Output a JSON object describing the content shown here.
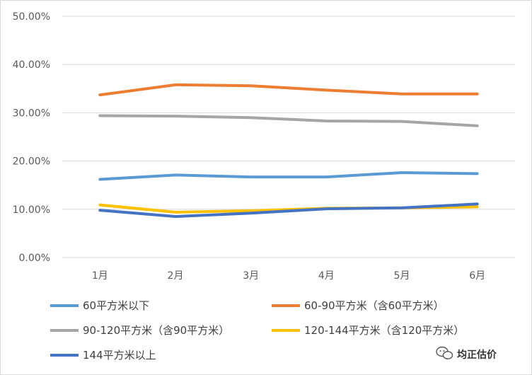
{
  "chart_data": {
    "type": "line",
    "title": "",
    "xlabel": "",
    "ylabel": "",
    "categories": [
      "1月",
      "2月",
      "3月",
      "4月",
      "5月",
      "6月"
    ],
    "ylim": [
      0,
      50
    ],
    "yticks": [
      "0.00%",
      "10.00%",
      "20.00%",
      "30.00%",
      "40.00%",
      "50.00%"
    ],
    "grid": true,
    "legend_position": "bottom",
    "series": [
      {
        "name": "60平方米以下",
        "color": "#5b9bd5",
        "values": [
          16.2,
          17.1,
          16.7,
          16.7,
          17.6,
          17.4
        ]
      },
      {
        "name": "60-90平方米（含60平方米）",
        "color": "#ed7d31",
        "values": [
          33.7,
          35.8,
          35.6,
          34.7,
          33.9,
          33.9
        ]
      },
      {
        "name": "90-120平方米（含90平方米）",
        "color": "#a5a5a5",
        "values": [
          29.4,
          29.3,
          29.0,
          28.3,
          28.2,
          27.3
        ]
      },
      {
        "name": "120-144平方米（含120平方米）",
        "color": "#ffc000",
        "values": [
          10.9,
          9.4,
          9.7,
          10.2,
          10.3,
          10.5
        ]
      },
      {
        "name": "144平方米以上",
        "color": "#4472c4",
        "values": [
          9.8,
          8.5,
          9.2,
          10.1,
          10.3,
          11.1
        ]
      }
    ]
  },
  "watermark": {
    "text": "均正估价",
    "icon": "wechat-icon"
  }
}
